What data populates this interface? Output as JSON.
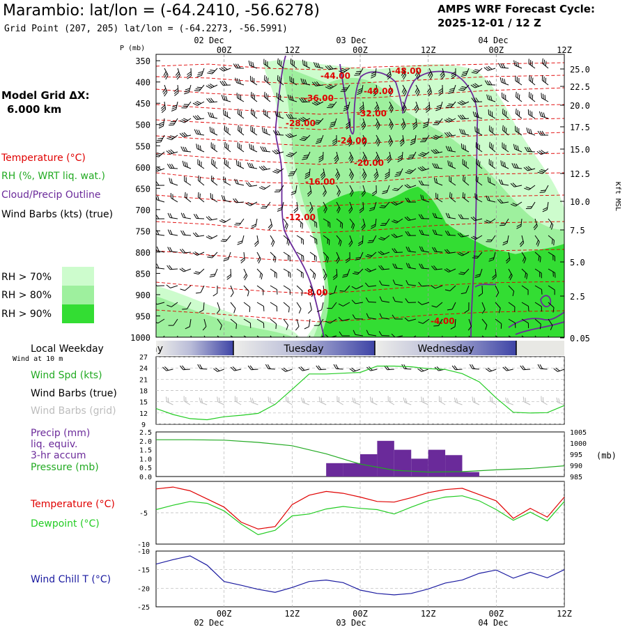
{
  "header": {
    "title": "Marambio:  lat/lon = (-64.2410, -56.6278)",
    "grid_point": "Grid Point (207, 205) lat/lon = (-64.2273, -56.5991)",
    "cycle_label": "AMPS WRF Forecast Cycle:",
    "cycle_value": "2025-12-01 / 12  Z"
  },
  "model_grid": {
    "label": "Model Grid ΔX:",
    "value": "6.000 km"
  },
  "time_axis": {
    "ticks": [
      "00Z",
      "12Z",
      "00Z",
      "12Z",
      "00Z",
      "12Z"
    ],
    "date_labels": [
      "02 Dec",
      "03 Dec",
      "04 Dec"
    ]
  },
  "weekday": {
    "label": "Local Weekday",
    "wind_note": "Wind at 10 m",
    "days": [
      "Monday",
      "Tuesday",
      "Wednesday"
    ]
  },
  "legend_top": {
    "temperature": "Temperature (°C)",
    "rh": "RH (%, WRT liq. wat.)",
    "cloud": "Cloud/Precip Outline",
    "wind": "Wind Barbs (kts) (true)",
    "rh_bins": [
      "RH > 70%",
      "RH > 80%",
      "RH > 90%"
    ]
  },
  "legend_wind": {
    "speed": "Wind Spd (kts)",
    "barbs_true": "Wind Barbs (true)",
    "barbs_grid": "Wind Barbs (grid)"
  },
  "legend_precip": {
    "precip1": "Precip (mm)",
    "precip2": "liq. equiv.",
    "precip3": "3-hr accum",
    "pressure": "Pressure (mb)"
  },
  "legend_temp": {
    "temperature": "Temperature (°C)",
    "dewpoint": "Dewpoint (°C)"
  },
  "legend_chill": {
    "label": "Wind Chill T (°C)"
  },
  "colors": {
    "rh70": "#cdfccd",
    "rh80": "#9ef09e",
    "rh90": "#33dd33",
    "temperature": "#e00000",
    "dewpoint": "#22cc22",
    "cloud": "#6b2a9a",
    "precip": "#6a2a9a",
    "chill": "#1a1aa0",
    "pressure": "#22aa22"
  },
  "chart_data": [
    {
      "type": "heatmap",
      "name": "cross-section",
      "ylabel": "P (mb)",
      "y2label": "Kft MSL",
      "pressure_ticks": [
        350,
        400,
        450,
        500,
        550,
        600,
        650,
        700,
        750,
        800,
        850,
        900,
        950,
        1000
      ],
      "height_ticks": [
        "25.0",
        "22.5",
        "20.0",
        "17.5",
        "15.0",
        "12.5",
        "10.0",
        "7.5",
        "5.0",
        "2.5",
        "0.05"
      ],
      "temperature_labels": [
        "-48.00",
        "-44.00",
        "-40.00",
        "-36.00",
        "-32.00",
        "-28.00",
        "-24.00",
        "-20.00",
        "-16.00",
        "-12.00",
        "-8.00",
        "-4.00"
      ]
    },
    {
      "type": "line",
      "name": "wind-speed",
      "yticks": [
        9,
        12,
        15,
        18,
        21,
        24,
        27
      ],
      "ylim": [
        9,
        27
      ],
      "x_hours": [
        -12,
        -9,
        -6,
        -3,
        0,
        3,
        6,
        9,
        12,
        15,
        18,
        21,
        24,
        27,
        30,
        33,
        36,
        39,
        42,
        45,
        48,
        51,
        54,
        57,
        60
      ],
      "values": [
        13.2,
        11.6,
        10.5,
        10.2,
        11,
        11.4,
        11.9,
        14.3,
        18.3,
        22.4,
        22.4,
        22.6,
        22.8,
        24.5,
        24.5,
        24.3,
        23.8,
        23.6,
        22.5,
        20.3,
        16,
        12.2,
        12,
        12.1,
        14
      ]
    },
    {
      "type": "bar",
      "name": "precip-pressure",
      "y_ticks": [
        "2.5",
        "2.0",
        "1.5",
        "1.0",
        "0.5",
        "0.0"
      ],
      "ylim": [
        0,
        2.5
      ],
      "y2_ticks": [
        "1005",
        "1000",
        "995",
        "990",
        "985"
      ],
      "y2label": "(mb)",
      "y2lim": [
        985,
        1005
      ],
      "bars": [
        {
          "x_start": 18,
          "x_end": 21,
          "value": 0.75
        },
        {
          "x_start": 21,
          "x_end": 24,
          "value": 0.75
        },
        {
          "x_start": 24,
          "x_end": 27,
          "value": 1.25
        },
        {
          "x_start": 27,
          "x_end": 30,
          "value": 2.0
        },
        {
          "x_start": 30,
          "x_end": 33,
          "value": 1.5
        },
        {
          "x_start": 33,
          "x_end": 36,
          "value": 1.0
        },
        {
          "x_start": 36,
          "x_end": 39,
          "value": 1.5
        },
        {
          "x_start": 39,
          "x_end": 42,
          "value": 1.2
        },
        {
          "x_start": 42,
          "x_end": 45,
          "value": 0.25
        }
      ],
      "pressure_x_hours": [
        -12,
        -6,
        0,
        6,
        12,
        18,
        24,
        30,
        36,
        42,
        48,
        54,
        60
      ],
      "pressure_values": [
        1001.5,
        1001.5,
        1001.3,
        1000.3,
        998.8,
        995.2,
        990.6,
        987.8,
        987,
        987.2,
        988,
        988.6,
        989.8
      ]
    },
    {
      "type": "line",
      "name": "temperature-dewpoint",
      "y_ticks": [
        "-5",
        "-10"
      ],
      "ylim": [
        -10,
        0
      ],
      "x_hours": [
        -12,
        -9,
        -6,
        -3,
        0,
        3,
        6,
        9,
        12,
        15,
        18,
        21,
        24,
        27,
        30,
        33,
        36,
        39,
        42,
        45,
        48,
        51,
        54,
        57,
        60
      ],
      "temperature": [
        -1.2,
        -0.9,
        -1.5,
        -2.8,
        -4.1,
        -6.5,
        -7.6,
        -7.2,
        -3.7,
        -2.2,
        -1.6,
        -1.9,
        -2.5,
        -3.2,
        -3.3,
        -2.6,
        -1.8,
        -1.3,
        -1.1,
        -2.1,
        -3.1,
        -5.9,
        -4.3,
        -5.7,
        -2.5
      ],
      "dewpoint": [
        -4.5,
        -3.8,
        -3.2,
        -3.5,
        -4.7,
        -6.8,
        -8.5,
        -7.8,
        -5.5,
        -5.2,
        -4.4,
        -4.0,
        -4.3,
        -4.5,
        -5.2,
        -4.1,
        -3.1,
        -2.5,
        -2.3,
        -3.1,
        -4.5,
        -6.2,
        -4.9,
        -6.3,
        -3.2
      ]
    },
    {
      "type": "line",
      "name": "wind-chill",
      "y_ticks": [
        "-10",
        "-15",
        "-20",
        "-25"
      ],
      "ylim": [
        -25,
        -10
      ],
      "x_hours": [
        -12,
        -9,
        -6,
        -3,
        0,
        3,
        6,
        9,
        12,
        15,
        18,
        21,
        24,
        27,
        30,
        33,
        36,
        39,
        42,
        45,
        48,
        51,
        54,
        57,
        60
      ],
      "values": [
        -13.5,
        -12.3,
        -11.3,
        -13.8,
        -18.2,
        -19.2,
        -20.3,
        -21.1,
        -19.8,
        -18.2,
        -17.8,
        -18.5,
        -20.5,
        -21.4,
        -21.8,
        -21.4,
        -20.2,
        -18.6,
        -17.8,
        -16,
        -15.1,
        -17.3,
        -15.7,
        -17.2,
        -15
      ]
    }
  ]
}
